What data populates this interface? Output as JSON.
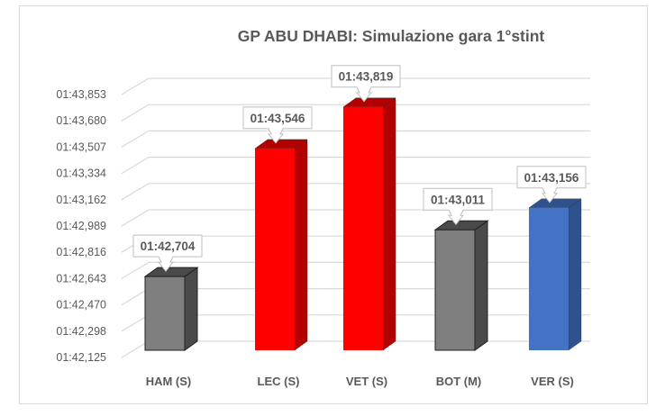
{
  "chart_data": {
    "type": "bar",
    "title": "GP ABU DHABI: Simulazione gara 1°stint",
    "xlabel": "",
    "ylabel": "",
    "categories": [
      "HAM (S)",
      "LEC (S)",
      "VET (S)",
      "BOT (M)",
      "VER (S)"
    ],
    "values": [
      102.704,
      103.546,
      103.819,
      103.011,
      103.156
    ],
    "value_labels": [
      "01:42,704",
      "01:43,546",
      "01:43,819",
      "01:43,011",
      "01:43,156"
    ],
    "colors": [
      "#7f7f7f",
      "#ff0000",
      "#ff0000",
      "#7f7f7f",
      "#4472c4"
    ],
    "side_colors": [
      "#4a4a4a",
      "#b30000",
      "#b30000",
      "#4a4a4a",
      "#2f528f"
    ],
    "y_ticks": [
      "01:42,125",
      "01:42,298",
      "01:42,470",
      "01:42,643",
      "01:42,816",
      "01:42,989",
      "01:43,162",
      "01:43,334",
      "01:43,507",
      "01:43,680",
      "01:43,853"
    ],
    "ylim": [
      102.125,
      103.853
    ],
    "grid": true,
    "legend": "none",
    "style": "3d-column"
  }
}
